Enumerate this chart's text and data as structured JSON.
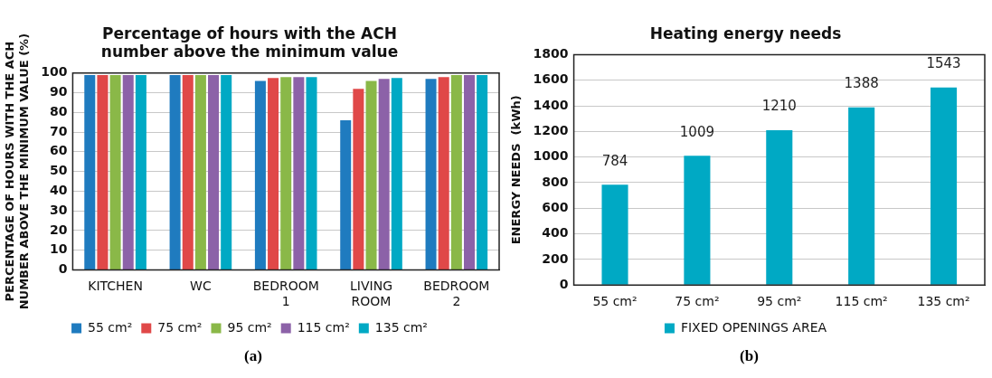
{
  "chart_data": [
    {
      "type": "bar",
      "title": "Percentage of hours with the ACH number above the minimum value",
      "ylabel": "PERCENTAGE OF HOURS WITH THE ACH NUMBER ABOVE THE MINIMUM VALUE (%)",
      "categories": [
        "KITCHEN",
        "WC",
        "BEDROOM 1",
        "LIVING ROOM",
        "BEDROOM 2"
      ],
      "series": [
        {
          "name": "55 cm²",
          "color": "#1f7bbf",
          "values": [
            99,
            99,
            96,
            76,
            97
          ]
        },
        {
          "name": "75 cm²",
          "color": "#e04848",
          "values": [
            99,
            99,
            97.5,
            92,
            98
          ]
        },
        {
          "name": "95 cm²",
          "color": "#8ab848",
          "values": [
            99,
            99,
            98,
            96,
            99
          ]
        },
        {
          "name": "115 cm²",
          "color": "#8c62a8",
          "values": [
            99,
            99,
            98,
            97,
            99
          ]
        },
        {
          "name": "135 cm²",
          "color": "#00a9c4",
          "values": [
            99,
            99,
            98,
            97.5,
            99
          ]
        }
      ],
      "ylim": [
        0,
        100
      ],
      "yticks": [
        0,
        10,
        20,
        30,
        40,
        50,
        60,
        70,
        80,
        90,
        100
      ],
      "grid": "y",
      "legend": "bottom",
      "annotations": [
        "(a)"
      ]
    },
    {
      "type": "bar",
      "title": "Heating energy needs",
      "ylabel": "ENERGY NEEDS  (kWh)",
      "categories": [
        "55 cm²",
        "75 cm²",
        "95 cm²",
        "115 cm²",
        "135 cm²"
      ],
      "series": [
        {
          "name": "FIXED OPENINGS AREA",
          "color": "#00a9c4",
          "values": [
            784,
            1009,
            1210,
            1388,
            1543
          ]
        }
      ],
      "ylim": [
        0,
        1800
      ],
      "yticks": [
        0,
        200,
        400,
        600,
        800,
        1000,
        1200,
        1400,
        1600,
        1800
      ],
      "grid": "y",
      "legend": "bottom",
      "data_labels": true,
      "annotations": [
        "(b)"
      ]
    }
  ]
}
